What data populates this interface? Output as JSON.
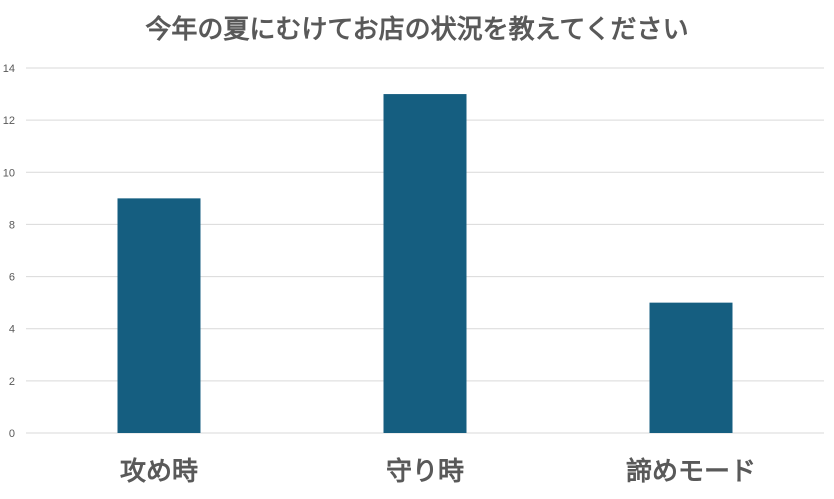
{
  "chart_data": {
    "type": "bar",
    "title": "今年の夏にむけてお店の状況を教えてください",
    "categories": [
      "攻め時",
      "守り時",
      "諦めモード"
    ],
    "values": [
      9,
      13,
      5
    ],
    "ylim": [
      0,
      14
    ],
    "yticks": [
      0,
      2,
      4,
      6,
      8,
      10,
      12,
      14
    ],
    "xlabel": "",
    "ylabel": "",
    "grid": true,
    "legend": "none",
    "colors": {
      "bar": "#155e80",
      "grid": "#d9d9d9",
      "text": "#595959"
    }
  }
}
